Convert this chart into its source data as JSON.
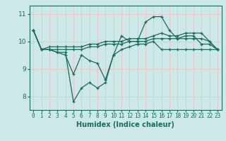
{
  "xlabel": "Humidex (Indice chaleur)",
  "xlim": [
    -0.5,
    23.5
  ],
  "ylim": [
    7.5,
    11.3
  ],
  "yticks": [
    8,
    9,
    10,
    11
  ],
  "xticks": [
    0,
    1,
    2,
    3,
    4,
    5,
    6,
    7,
    8,
    9,
    10,
    11,
    12,
    13,
    14,
    15,
    16,
    17,
    18,
    19,
    20,
    21,
    22,
    23
  ],
  "background_color": "#cce8e8",
  "grid_color": "#e8c8c8",
  "line_color": "#1a6b5a",
  "lines": [
    [
      10.4,
      9.7,
      9.7,
      9.6,
      9.6,
      7.8,
      8.3,
      8.5,
      8.3,
      8.5,
      9.5,
      10.2,
      10.0,
      10.0,
      10.7,
      10.9,
      10.9,
      10.4,
      10.1,
      10.2,
      10.2,
      9.9,
      9.9,
      9.7
    ],
    [
      10.4,
      9.7,
      9.7,
      9.6,
      9.5,
      8.8,
      9.5,
      9.3,
      9.2,
      8.6,
      9.5,
      9.7,
      9.8,
      9.9,
      9.9,
      10.0,
      9.7,
      9.7,
      9.7,
      9.7,
      9.7,
      9.7,
      9.7,
      9.7
    ],
    [
      10.4,
      9.7,
      9.7,
      9.7,
      9.7,
      9.7,
      9.7,
      9.8,
      9.8,
      9.9,
      9.9,
      9.9,
      10.0,
      10.0,
      10.0,
      10.1,
      10.1,
      10.1,
      10.1,
      10.1,
      10.1,
      10.1,
      10.0,
      9.7
    ],
    [
      10.4,
      9.7,
      9.8,
      9.8,
      9.8,
      9.8,
      9.8,
      9.9,
      9.9,
      10.0,
      10.0,
      10.0,
      10.1,
      10.1,
      10.1,
      10.2,
      10.3,
      10.2,
      10.2,
      10.3,
      10.3,
      10.3,
      10.0,
      9.7
    ]
  ]
}
